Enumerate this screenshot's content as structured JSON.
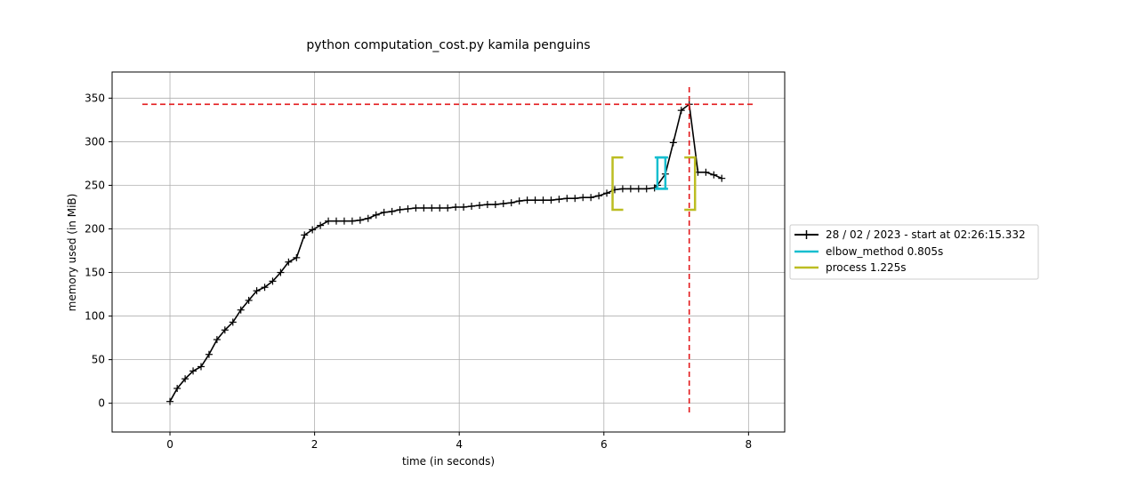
{
  "chart_data": {
    "type": "line",
    "title": "python computation_cost.py kamila penguins",
    "xlabel": "time (in seconds)",
    "ylabel": "memory used (in MiB)",
    "xlim": [
      -0.8,
      8.5
    ],
    "ylim": [
      -33,
      380
    ],
    "xticks": [
      0,
      2,
      4,
      6,
      8
    ],
    "yticks": [
      0,
      50,
      100,
      150,
      200,
      250,
      300,
      350
    ],
    "grid": true,
    "legend_position": "right",
    "series": [
      {
        "name": "28 / 02 / 2023 - start at 02:26:15.332",
        "color": "#000000",
        "marker": "plus",
        "x": [
          0.0,
          0.1,
          0.21,
          0.32,
          0.43,
          0.54,
          0.65,
          0.76,
          0.87,
          0.98,
          1.09,
          1.2,
          1.31,
          1.42,
          1.53,
          1.64,
          1.75,
          1.86,
          1.97,
          2.08,
          2.19,
          2.3,
          2.41,
          2.52,
          2.63,
          2.74,
          2.85,
          2.96,
          3.07,
          3.18,
          3.29,
          3.4,
          3.51,
          3.62,
          3.73,
          3.84,
          3.95,
          4.06,
          4.17,
          4.28,
          4.39,
          4.5,
          4.61,
          4.72,
          4.83,
          4.94,
          5.05,
          5.16,
          5.27,
          5.38,
          5.49,
          5.6,
          5.71,
          5.82,
          5.93,
          6.04,
          6.15,
          6.26,
          6.37,
          6.48,
          6.59,
          6.7,
          6.74,
          6.85,
          6.96,
          7.07,
          7.18,
          7.3,
          7.41,
          7.52,
          7.63
        ],
        "y": [
          2,
          17,
          28,
          37,
          42,
          56,
          73,
          84,
          93,
          107,
          118,
          129,
          133,
          140,
          150,
          162,
          167,
          193,
          199,
          204,
          209,
          209,
          209,
          209,
          210,
          212,
          216,
          219,
          220,
          222,
          223,
          224,
          224,
          224,
          224,
          224,
          225,
          225,
          226,
          227,
          228,
          228,
          229,
          230,
          232,
          233,
          233,
          233,
          233,
          234,
          235,
          235,
          236,
          236,
          238,
          241,
          245,
          246,
          246,
          246,
          246,
          247,
          250,
          263,
          299,
          336,
          343,
          265,
          265,
          262,
          258
        ]
      }
    ],
    "brackets": [
      {
        "name": "elbow_method 0.805s",
        "color": "#17becf",
        "start": {
          "x": 6.74,
          "y": 246
        },
        "end": {
          "x": 6.85,
          "y": 282
        }
      },
      {
        "name": "process 1.225s",
        "color": "#bcbd22",
        "start": {
          "x": 6.12,
          "y": 222
        },
        "end": {
          "x": 7.26,
          "y": 282
        }
      }
    ],
    "max_markers": {
      "color": "#e31a1c",
      "x": 7.18,
      "y": 343
    }
  }
}
